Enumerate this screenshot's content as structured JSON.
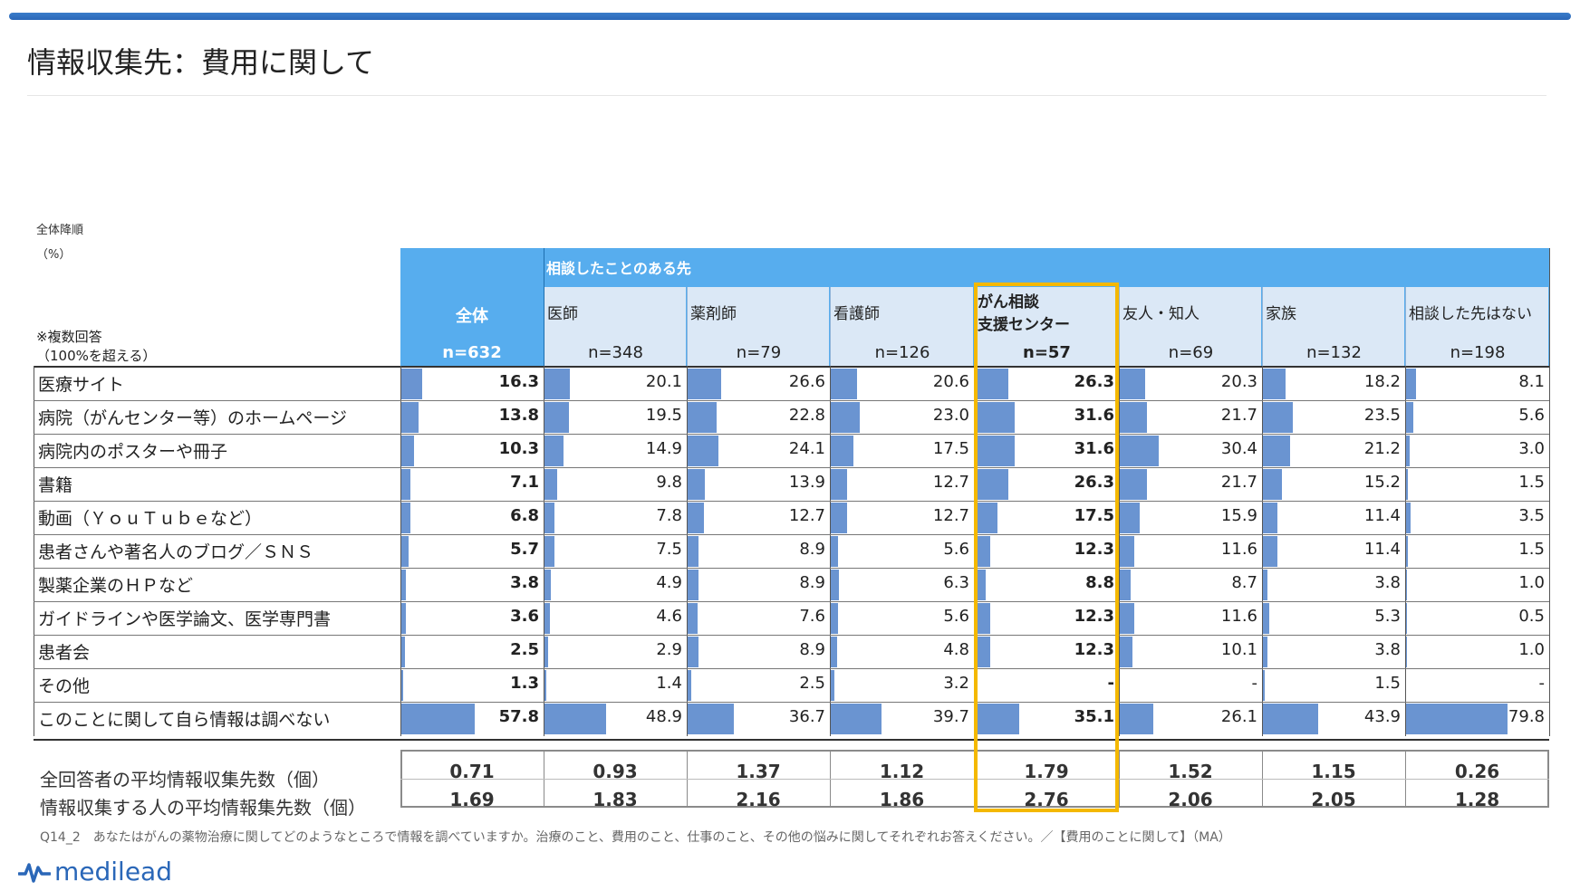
{
  "page": {
    "title": "情報収集先：費用に関して",
    "sort_note": "全体降順",
    "unit": "（%）",
    "multi_answer_note": [
      "※複数回答",
      "（100%を超える）"
    ],
    "group_header": "相談したことのある先",
    "question": "Q14_2　あなたはがんの薬物治療に関してどのようなところで情報を調べていますか。治療のこと、費用のこと、仕事のこと、その他の悩みに関してそれぞれお答えください。／【費用のことに関して】（MA）",
    "logo_text": "medilead"
  },
  "chart_data": {
    "type": "table",
    "title": "情報収集先：費用に関して",
    "bar_scale_max": 100,
    "highlight_column": 4,
    "columns": [
      {
        "name": "全体",
        "n": "n=632"
      },
      {
        "name": "医師",
        "n": "n=348"
      },
      {
        "name": "薬剤師",
        "n": "n=79"
      },
      {
        "name": "看護師",
        "n": "n=126"
      },
      {
        "name": "がん相談支援センター",
        "name_lines": [
          "がん相談",
          "支援センター"
        ],
        "n": "n=57"
      },
      {
        "name": "友人・知人",
        "n": "n=69"
      },
      {
        "name": "家族",
        "n": "n=132"
      },
      {
        "name": "相談した先はない",
        "n": "n=198"
      }
    ],
    "rows": [
      {
        "label": "医療サイト",
        "values": [
          16.3,
          20.1,
          26.6,
          20.6,
          26.3,
          20.3,
          18.2,
          8.1
        ]
      },
      {
        "label": "病院（がんセンター等）のホームページ",
        "values": [
          13.8,
          19.5,
          22.8,
          23.0,
          31.6,
          21.7,
          23.5,
          5.6
        ]
      },
      {
        "label": "病院内のポスターや冊子",
        "values": [
          10.3,
          14.9,
          24.1,
          17.5,
          31.6,
          30.4,
          21.2,
          3.0
        ]
      },
      {
        "label": "書籍",
        "values": [
          7.1,
          9.8,
          13.9,
          12.7,
          26.3,
          21.7,
          15.2,
          1.5
        ]
      },
      {
        "label": "動画（ＹｏｕＴｕｂｅなど）",
        "values": [
          6.8,
          7.8,
          12.7,
          12.7,
          17.5,
          15.9,
          11.4,
          3.5
        ]
      },
      {
        "label": "患者さんや著名人のブログ／ＳＮＳ",
        "values": [
          5.7,
          7.5,
          8.9,
          5.6,
          12.3,
          11.6,
          11.4,
          1.5
        ]
      },
      {
        "label": "製薬企業のＨＰなど",
        "values": [
          3.8,
          4.9,
          8.9,
          6.3,
          8.8,
          8.7,
          3.8,
          1.0
        ]
      },
      {
        "label": "ガイドラインや医学論文、医学専門書",
        "values": [
          3.6,
          4.6,
          7.6,
          5.6,
          12.3,
          11.6,
          5.3,
          0.5
        ]
      },
      {
        "label": "患者会",
        "values": [
          2.5,
          2.9,
          8.9,
          4.8,
          12.3,
          10.1,
          3.8,
          1.0
        ]
      },
      {
        "label": "その他",
        "values": [
          1.3,
          1.4,
          2.5,
          3.2,
          null,
          null,
          1.5,
          null
        ]
      },
      {
        "label": "このことに関して自ら情報は調べない",
        "values": [
          57.8,
          48.9,
          36.7,
          39.7,
          35.1,
          26.1,
          43.9,
          79.8
        ]
      }
    ],
    "summary_rows": [
      {
        "label": "全回答者の平均情報収集先数（個）",
        "values": [
          "0.71",
          "0.93",
          "1.37",
          "1.12",
          "1.79",
          "1.52",
          "1.15",
          "0.26"
        ]
      },
      {
        "label": "情報収集する人の平均情報集先数（個）",
        "values": [
          "1.69",
          "1.83",
          "2.16",
          "1.86",
          "2.76",
          "2.06",
          "2.05",
          "1.28"
        ]
      }
    ],
    "colors": {
      "bar": "#6a94d1",
      "header_band": "#57adee",
      "header_cell": "#dbe8f6",
      "highlight": "#f4b800"
    }
  }
}
